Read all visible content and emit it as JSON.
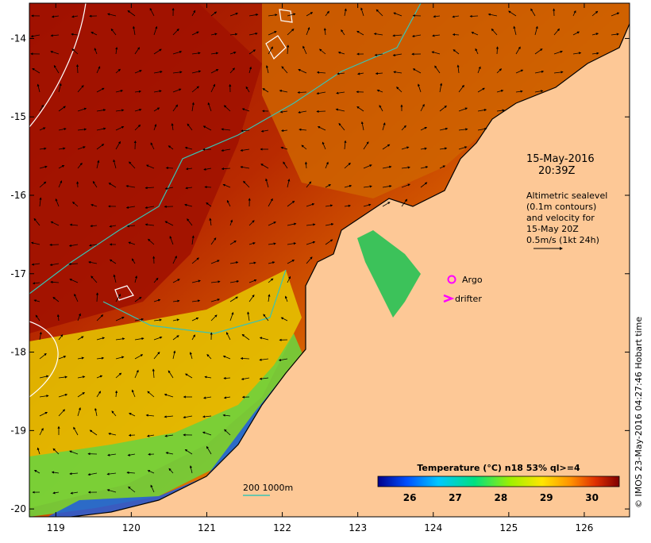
{
  "map": {
    "lon_ticks": [
      "119",
      "120",
      "121",
      "122",
      "123",
      "124",
      "125",
      "126"
    ],
    "lat_ticks": [
      "-14",
      "-15",
      "-16",
      "-17",
      "-18",
      "-19",
      "-20"
    ],
    "lon_values": [
      119,
      120,
      121,
      122,
      123,
      124,
      125,
      126
    ],
    "lat_values": [
      -14,
      -15,
      -16,
      -17,
      -18,
      -19,
      -20
    ],
    "lon_range": [
      118.65,
      126.6
    ],
    "lat_range": [
      -13.55,
      -20.1
    ]
  },
  "annotations": {
    "date": "15-May-2016",
    "time": "20:39Z",
    "sealevel_lines": [
      "Altimetric sealevel",
      "(0.1m contours)",
      "and velocity for",
      "15-May 20Z",
      "0.5m/s (1kt 24h)"
    ],
    "argo_label": "Argo",
    "drifter_label": "drifter",
    "depth_legend": "200  1000m",
    "credit": "© IMOS 23-May-2016 04:27:46 Hobart time"
  },
  "colorbar": {
    "title": "Temperature (°C) n18 53% ql>=4",
    "labels": [
      "26",
      "27",
      "28",
      "29",
      "30"
    ],
    "values": [
      26,
      27,
      28,
      29,
      30
    ],
    "range": [
      25.3,
      30.6
    ]
  },
  "colors": {
    "land": "#fdc896",
    "warm": "#b21e00",
    "hot": "#8f0a00",
    "mid": "#d86a00",
    "cool": "#f0c000",
    "cold": "#5fd23c",
    "coldest": "#1e3cd2",
    "contour": "#39c4b4",
    "marker": "#ff00ff"
  }
}
